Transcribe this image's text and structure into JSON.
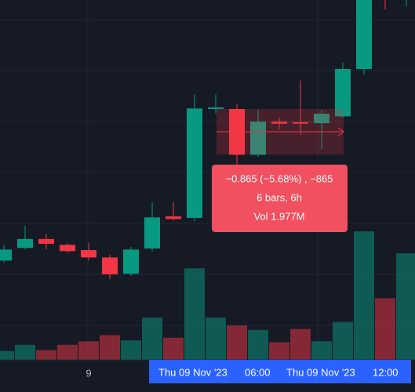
{
  "chart_data": {
    "type": "candlestick",
    "categories": [
      null,
      null,
      null,
      null,
      "9",
      null,
      null,
      null,
      null,
      null,
      null,
      null,
      null,
      null,
      null,
      null,
      null,
      null,
      null,
      null
    ],
    "open": [
      12.35,
      12.59,
      12.76,
      12.65,
      12.55,
      12.41,
      12.1,
      12.58,
      13.19,
      13.16,
      15.23,
      15.23,
      14.36,
      14.99,
      14.98,
      14.96,
      15.09,
      15.99,
      17.9,
      17.8
    ],
    "high": [
      12.65,
      13.01,
      12.86,
      12.68,
      12.68,
      12.46,
      12.61,
      13.46,
      13.46,
      15.51,
      15.51,
      15.33,
      15.21,
      15.06,
      15.77,
      15.21,
      16.11,
      17.8,
      18.0,
      18.0
    ],
    "low": [
      12.31,
      12.56,
      12.56,
      12.5,
      12.35,
      12.0,
      12.06,
      12.53,
      13.11,
      13.1,
      15.14,
      14.17,
      14.32,
      14.84,
      14.74,
      14.47,
      15.06,
      15.88,
      17.12,
      17.18
    ],
    "close": [
      12.56,
      12.76,
      12.67,
      12.53,
      12.41,
      12.09,
      12.56,
      13.17,
      13.14,
      15.24,
      15.26,
      14.36,
      14.99,
      14.95,
      14.96,
      15.14,
      15.99,
      17.7,
      17.75,
      17.95
    ],
    "volume": [
      0.11,
      0.18,
      0.12,
      0.18,
      0.22,
      0.29,
      0.23,
      0.49,
      0.26,
      1.05,
      0.49,
      0.4,
      0.35,
      0.21,
      0.36,
      0.22,
      0.44,
      1.47,
      0.71,
      1.22
    ],
    "ylim": [
      10.45,
      17.3
    ],
    "volume_ylim": [
      0,
      4.1
    ],
    "up_color": "#089981",
    "down_color": "#f23645",
    "measure": {
      "change": "−0.865 (−5.68%) , −865",
      "bars": "6 bars, 6h",
      "volume": "Vol 1.977M"
    },
    "crosshair_labels": [
      "Thu 09 Nov '23",
      "06:00",
      "Thu 09 Nov '23",
      "12:00"
    ]
  }
}
